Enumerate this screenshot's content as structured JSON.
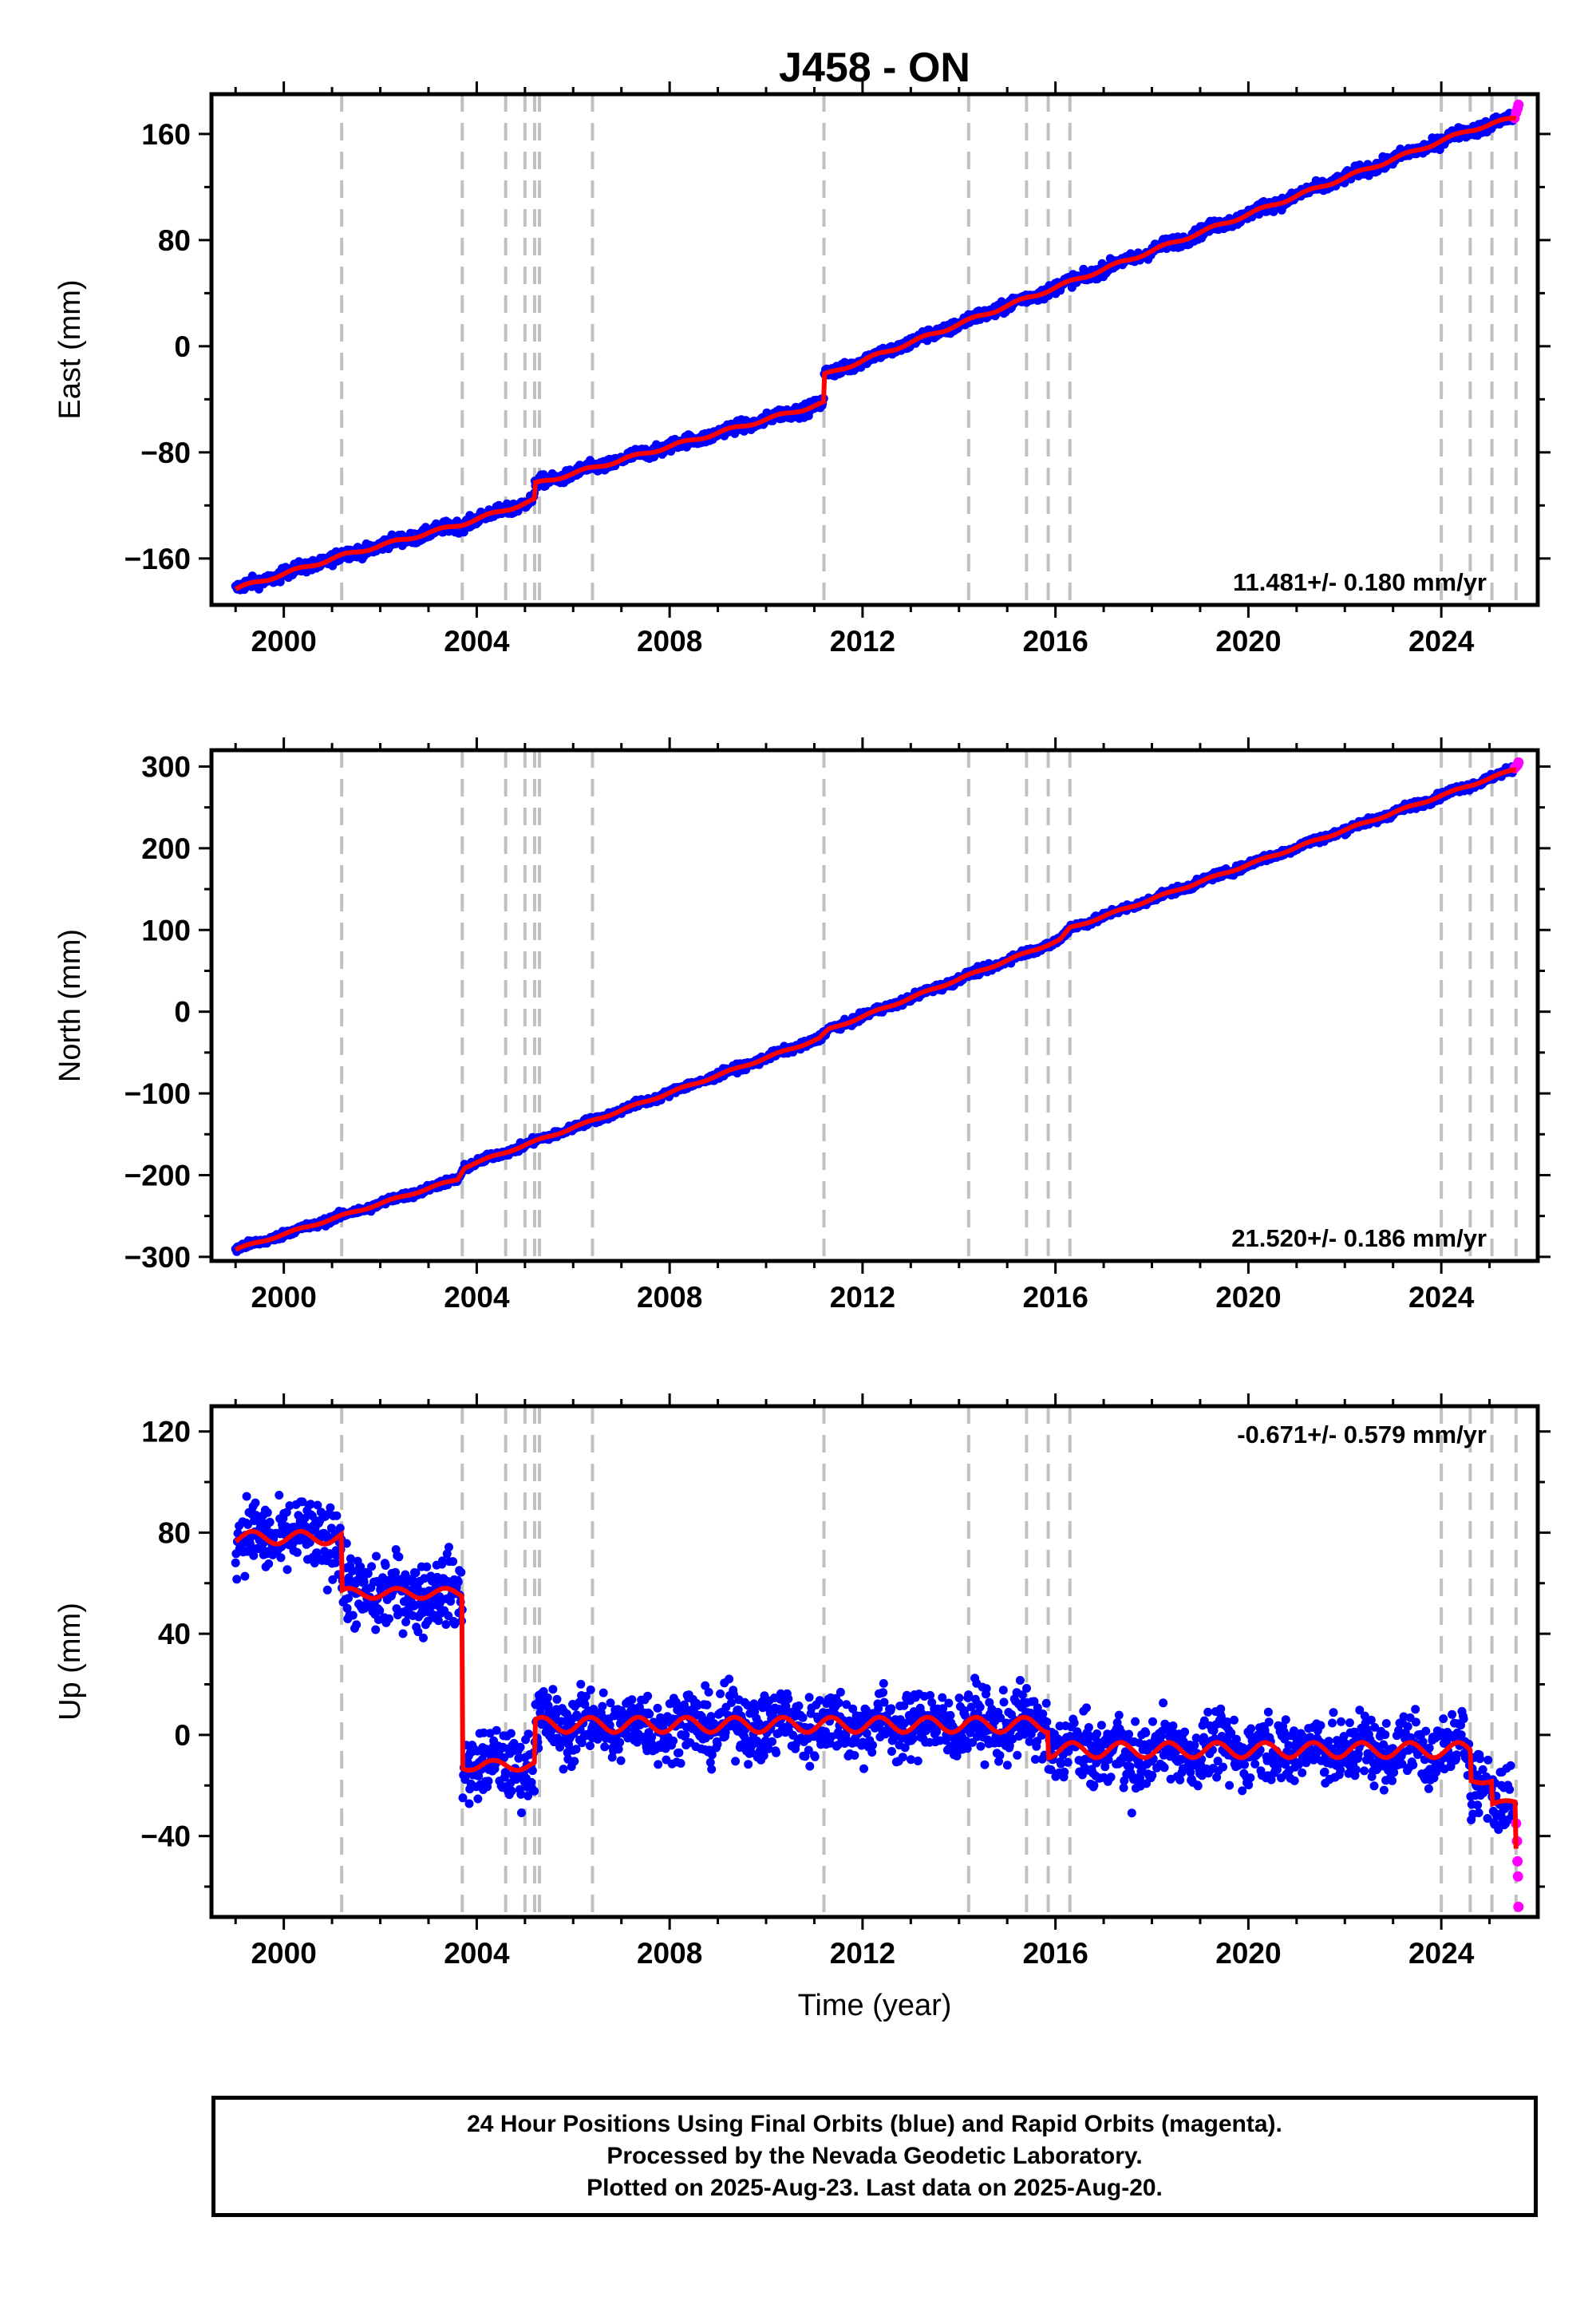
{
  "title": "J458 - ON",
  "xlabel": "Time (year)",
  "colors": {
    "final": "#0000ff",
    "rapid": "#ff00ff",
    "model": "#ff0000",
    "breaks": "#c0c0c0"
  },
  "footer": [
    "24 Hour Positions Using Final Orbits (blue) and Rapid Orbits (magenta).",
    "Processed by the Nevada Geodetic Laboratory.",
    "Plotted on 2025-Aug-23. Last data on 2025-Aug-20."
  ],
  "chart_data": [
    {
      "type": "scatter",
      "ylabel": "East (mm)",
      "rate": "11.481+/- 0.180 mm/yr",
      "xlim": [
        1998.5,
        2026.0
      ],
      "ylim": [
        -195,
        190
      ],
      "xticks": [
        2000,
        2004,
        2008,
        2012,
        2016,
        2020,
        2024
      ],
      "xticklabels": [
        "2000",
        "2004",
        "2008",
        "2012",
        "2016",
        "2020",
        "2024"
      ],
      "yticks": [
        -160,
        -80,
        0,
        80,
        160
      ],
      "yticklabels": [
        "−160",
        "−80",
        "0",
        "80",
        "160"
      ],
      "breaks": [
        2001.2,
        2003.7,
        2004.6,
        2005.0,
        2005.2,
        2005.3,
        2006.4,
        2011.2,
        2014.2,
        2015.4,
        2015.85,
        2016.3,
        2024.0,
        2024.6,
        2025.05,
        2025.55
      ],
      "model": {
        "x": [
          1999.0,
          2001.2,
          2003.7,
          2005.2,
          2005.2,
          2011.2,
          2011.2,
          2024.6,
          2025.5
        ],
        "y": [
          -183,
          -158,
          -134,
          -116,
          -104,
          -43,
          -22,
          163,
          172
        ]
      },
      "final": {
        "x_start": 1999.0,
        "x_end": 2025.5,
        "scatter": 4
      },
      "rapid": {
        "x": [
          2025.52,
          2025.55,
          2025.58,
          2025.6
        ],
        "y": [
          172,
          176,
          179,
          182
        ]
      }
    },
    {
      "type": "scatter",
      "ylabel": "North (mm)",
      "rate": "21.520+/- 0.186 mm/yr",
      "xlim": [
        1998.5,
        2026.0
      ],
      "ylim": [
        -305,
        320
      ],
      "xticks": [
        2000,
        2004,
        2008,
        2012,
        2016,
        2020,
        2024
      ],
      "xticklabels": [
        "2000",
        "2004",
        "2008",
        "2012",
        "2016",
        "2020",
        "2024"
      ],
      "yticks": [
        -300,
        -200,
        -100,
        0,
        100,
        200,
        300
      ],
      "yticklabels": [
        "−300",
        "−200",
        "−100",
        "0",
        "100",
        "200",
        "300"
      ],
      "breaks": [
        2001.2,
        2003.7,
        2004.6,
        2005.0,
        2005.2,
        2005.3,
        2006.4,
        2011.2,
        2014.2,
        2015.4,
        2015.85,
        2016.3,
        2024.0,
        2024.6,
        2025.05,
        2025.55
      ],
      "model": {
        "x": [
          1999.0,
          2003.6,
          2003.75,
          2011.1,
          2011.3,
          2016.1,
          2016.3,
          2025.5
        ],
        "y": [
          -291,
          -205,
          -190,
          -33,
          -22,
          88,
          102,
          296
        ]
      },
      "final": {
        "x_start": 1999.0,
        "x_end": 2025.5,
        "scatter": 4
      },
      "rapid": {
        "x": [
          2025.52,
          2025.55,
          2025.58,
          2025.6
        ],
        "y": [
          298,
          300,
          302,
          305
        ]
      }
    },
    {
      "type": "scatter",
      "ylabel": "Up (mm)",
      "rate": "-0.671+/- 0.579 mm/yr",
      "xlim": [
        1998.5,
        2026.0
      ],
      "ylim": [
        -72,
        130
      ],
      "xticks": [
        2000,
        2004,
        2008,
        2012,
        2016,
        2020,
        2024
      ],
      "xticklabels": [
        "2000",
        "2004",
        "2008",
        "2012",
        "2016",
        "2020",
        "2024"
      ],
      "yticks": [
        -40,
        0,
        40,
        80,
        120
      ],
      "yticklabels": [
        "−40",
        "0",
        "40",
        "80",
        "120"
      ],
      "breaks": [
        2001.2,
        2003.7,
        2004.6,
        2005.0,
        2005.2,
        2005.3,
        2006.4,
        2011.2,
        2014.2,
        2015.4,
        2015.85,
        2016.3,
        2024.0,
        2024.6,
        2025.05,
        2025.55
      ],
      "segments": [
        {
          "x0": 1999.0,
          "x1": 2001.2,
          "level": 78,
          "amp": 2.5
        },
        {
          "x0": 2001.2,
          "x1": 2003.7,
          "level": 56,
          "amp": 2.0
        },
        {
          "x0": 2003.7,
          "x1": 2005.2,
          "level": -12,
          "amp": 2.0
        },
        {
          "x0": 2005.2,
          "x1": 2015.85,
          "level": 4,
          "amp": 3.0
        },
        {
          "x0": 2015.85,
          "x1": 2024.6,
          "level": -6,
          "amp": 3.0
        },
        {
          "x0": 2024.6,
          "x1": 2025.05,
          "level": -18,
          "amp": 1.0
        },
        {
          "x0": 2025.05,
          "x1": 2025.55,
          "level": -27,
          "amp": 1.0
        },
        {
          "x0": 2025.55,
          "x1": 2025.6,
          "level": -45,
          "amp": 0.0
        }
      ],
      "final": {
        "x_start": 1999.0,
        "x_end": 2025.5,
        "scatter": 12
      },
      "rapid": {
        "x": [
          2025.55,
          2025.57,
          2025.58,
          2025.59,
          2025.6
        ],
        "y": [
          -35,
          -42,
          -50,
          -56,
          -68
        ]
      }
    }
  ]
}
